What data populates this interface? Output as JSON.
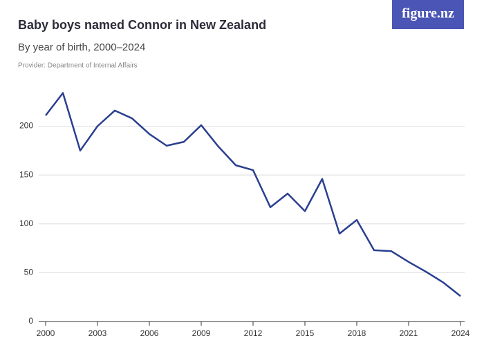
{
  "logo": "figure.nz",
  "chart_data": {
    "type": "line",
    "title": "Baby boys named Connor in New Zealand",
    "subtitle": "By year of birth, 2000–2024",
    "provider": "Provider: Department of Internal Affairs",
    "x": [
      2000,
      2001,
      2002,
      2003,
      2004,
      2005,
      2006,
      2007,
      2008,
      2009,
      2010,
      2011,
      2012,
      2013,
      2014,
      2015,
      2016,
      2017,
      2018,
      2019,
      2020,
      2021,
      2022,
      2023,
      2024
    ],
    "series": [
      {
        "name": "Connor",
        "color": "#2a3f8f",
        "values": [
          211,
          234,
          175,
          200,
          216,
          208,
          192,
          180,
          184,
          201,
          179,
          160,
          155,
          117,
          131,
          113,
          146,
          90,
          104,
          73,
          72,
          61,
          51,
          40,
          26
        ]
      }
    ],
    "xlim": [
      2000,
      2024
    ],
    "xticks": [
      2000,
      2003,
      2006,
      2009,
      2012,
      2015,
      2018,
      2021,
      2024
    ],
    "ylim": [
      0,
      240
    ],
    "yticks": [
      0,
      50,
      100,
      150,
      200
    ],
    "grid": true
  }
}
